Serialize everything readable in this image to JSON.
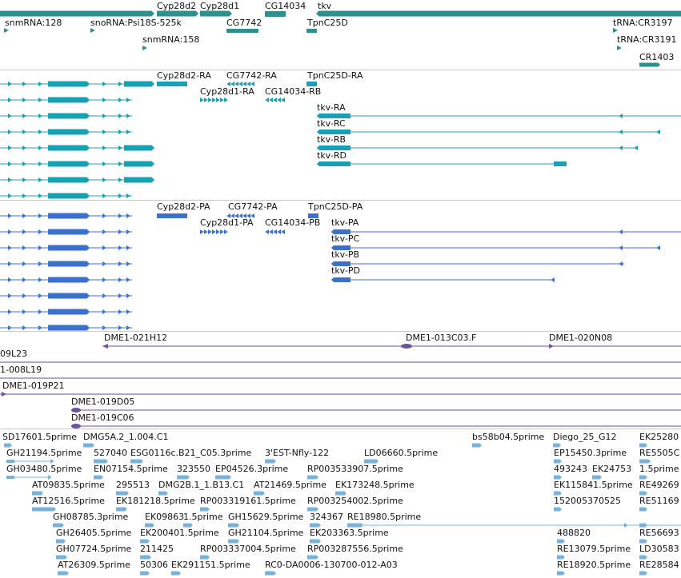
{
  "tracks": {
    "genes": {
      "labels": [
        "Cyp28d2",
        "Cyp28d1",
        "CG14034",
        "tkv",
        "snmRNA:128",
        "snoRNA:Psi18S-525k",
        "CG7742",
        "TpnC25D",
        "tRNA:CR3197",
        "snmRNA:158",
        "tRNA:CR3191",
        "CR1403"
      ]
    },
    "transcripts_ra": {
      "labels": [
        "Cyp28d2-RA",
        "CG7742-RA",
        "TpnC25D-RA",
        "Cyp28d1-RA",
        "CG14034-RB",
        "tkv-RA",
        "tkv-RC",
        "tkv-RB",
        "tkv-RD"
      ]
    },
    "proteins_pa": {
      "labels": [
        "Cyp28d2-PA",
        "CG7742-PA",
        "TpnC25D-PA",
        "Cyp28d1-PA",
        "CG14034-PB",
        "tkv-PA",
        "tkv-PC",
        "tkv-PB",
        "tkv-PD"
      ]
    },
    "clones": {
      "labels": [
        "DME1-021H12",
        "DME1-013C03.F",
        "DME1-020N08",
        "09L23",
        "1-008L19",
        "DME1-019P21",
        "DME1-019D05",
        "DME1-019C06"
      ]
    },
    "ests": {
      "labels": [
        "SD17601.5prime",
        "DMG5A.2_1.004.C1",
        "bs58b04.5prime",
        "Diego_25_G12",
        "EK25280",
        "GH21194.5prime",
        "527040",
        "ESG0116c.B21_C05.3prime",
        "3'EST-Nfly-122",
        "LD06660.5prime",
        "EP15450.3prime",
        "RE5505C",
        "GH03480.5prime",
        "EN07154.5prime",
        "323550",
        "EP04526.3prime",
        "RP003533907.5prime",
        "493243",
        "EK24753",
        "1.5prime",
        "AT09835.5prime",
        "295513",
        "DMG2B.1_1.B13.C1",
        "AT21469.5prime",
        "EK173248.5prime",
        "EK115841.5prime",
        "RE49269",
        "AT12516.5prime",
        "EK181218.5prime",
        "RP003319161.5prime",
        "RP003254002.5prime",
        "152005370525",
        "RE51169",
        "GH08785.3prime",
        "EK09863",
        "1.5prime",
        "GH15629.5prime",
        "324367",
        "RE18980.5prime",
        "GH26405.5prime",
        "EK200401.5prime",
        "GH21104.5prime",
        "EK203363.5prime",
        "488820",
        "RE56693",
        "GH07724.5prime",
        "211425",
        "RP003337004.5prime",
        "RP003287556.5prime",
        "RE13079.5prime",
        "LD30583",
        "AT26309.5prime",
        "50306",
        "EK291151.5prime",
        "RC0-DA0006-130700-012-A03",
        "RE18920.5prime",
        "RE28584"
      ]
    }
  },
  "colors": {
    "gene": "#2e8f8f",
    "transcript": "#17a1b4",
    "protein": "#3b6fd0",
    "clone": "#6a52a0",
    "est": "#76b2dc",
    "separator": "#c9c9c9"
  }
}
